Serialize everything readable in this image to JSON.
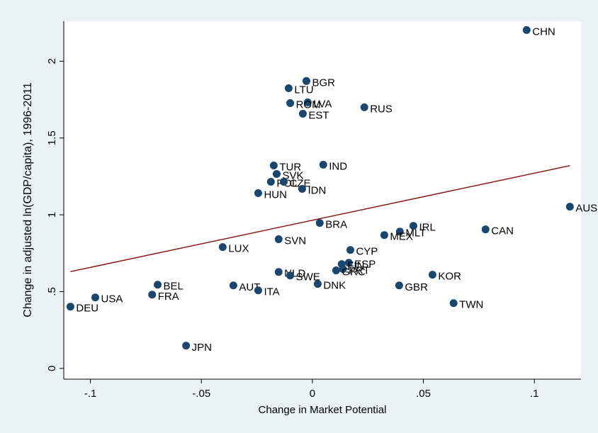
{
  "chart_data": {
    "type": "scatter",
    "x_label": "Change in Market Potential",
    "y_label": "Change in adjusted ln(GDP/capita), 1996-2011",
    "xlim": [
      -0.112,
      0.121
    ],
    "ylim": [
      -0.07,
      2.26
    ],
    "xticks": [
      {
        "value": -0.1,
        "label": "-.1"
      },
      {
        "value": -0.05,
        "label": "-.05"
      },
      0,
      {
        "value": 0.05,
        "label": ".05"
      },
      {
        "value": 0.1,
        "label": ".1"
      }
    ],
    "yticks": [
      0,
      {
        "value": 0.5,
        "label": ".5"
      },
      1,
      1.5,
      2
    ],
    "color": "#1a476f",
    "labels": [
      "CHN",
      "BGR",
      "LTU",
      "LVA",
      "ROM",
      "EST",
      "RUS",
      "TUR",
      "IND",
      "SVK",
      "POL",
      "CZE",
      "HUN",
      "IDN",
      "AUS",
      "BRA",
      "IRL",
      "MLT",
      "MEX",
      "CAN",
      "SVN",
      "LUX",
      "CYP",
      "ESP",
      "FIN",
      "PRT",
      "GRC",
      "NLD",
      "SWE",
      "KOR",
      "BEL",
      "AUT",
      "DNK",
      "GBR",
      "ITA",
      "FRA",
      "USA",
      "TWN",
      "DEU",
      "JPN"
    ],
    "x": [
      0.0965,
      -0.0027,
      -0.0107,
      -0.0021,
      -0.01,
      -0.0043,
      0.0234,
      -0.0174,
      0.0049,
      -0.0161,
      -0.0187,
      -0.0129,
      -0.0244,
      -0.0046,
      0.116,
      0.0033,
      0.0455,
      0.0394,
      0.0324,
      0.078,
      -0.0152,
      -0.0404,
      0.0171,
      0.0164,
      0.0132,
      0.0138,
      0.0107,
      -0.0152,
      -0.01,
      0.0541,
      -0.0697,
      -0.0356,
      0.0024,
      0.0391,
      -0.0244,
      -0.0722,
      -0.0978,
      0.0636,
      -0.109,
      -0.0569
    ],
    "y": [
      2.203,
      1.871,
      1.824,
      1.732,
      1.727,
      1.658,
      1.7,
      1.321,
      1.326,
      1.266,
      1.215,
      1.215,
      1.141,
      1.169,
      1.053,
      0.947,
      0.928,
      0.891,
      0.868,
      0.905,
      0.841,
      0.79,
      0.771,
      0.688,
      0.679,
      0.647,
      0.638,
      0.628,
      0.605,
      0.61,
      0.545,
      0.54,
      0.55,
      0.54,
      0.508,
      0.48,
      0.462,
      0.425,
      0.402,
      0.148
    ],
    "fit_line": {
      "color": "#8b1a1a",
      "x": [
        -0.109,
        0.116
      ],
      "y": [
        0.63,
        1.32
      ]
    }
  }
}
